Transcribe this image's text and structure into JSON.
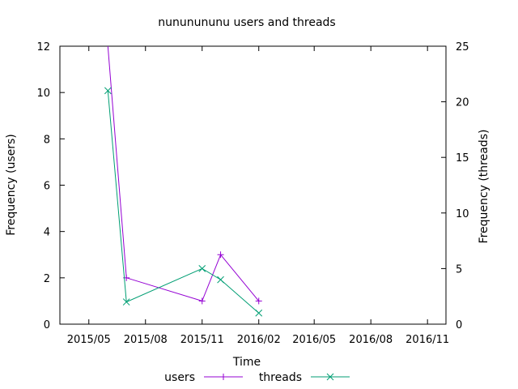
{
  "chart_data": {
    "type": "line",
    "title": "nununununu users and threads",
    "xlabel": "Time",
    "ylabel_left": "Frequency (users)",
    "ylabel_right": "Frequency (threads)",
    "x_ticks": [
      "2015/05",
      "2015/08",
      "2015/11",
      "2016/02",
      "2016/05",
      "2016/08",
      "2016/11"
    ],
    "y_left_ticks": [
      "0",
      "2",
      "4",
      "6",
      "8",
      "10",
      "12"
    ],
    "y_right_ticks": [
      "0",
      "5",
      "10",
      "15",
      "20",
      "25"
    ],
    "y_left_range": [
      0,
      12
    ],
    "y_right_range": [
      0,
      25
    ],
    "x_range": [
      "2015-03-15",
      "2016-12-01"
    ],
    "grid": false,
    "legend_position": "bottom",
    "series": [
      {
        "name": "users",
        "axis": "left",
        "color": "#9400d3",
        "marker": "plus",
        "points": [
          {
            "x": "2015-06-01",
            "y": 12.5
          },
          {
            "x": "2015-07-01",
            "y": 2
          },
          {
            "x": "2015-11-01",
            "y": 1
          },
          {
            "x": "2015-12-01",
            "y": 3
          },
          {
            "x": "2016-02-01",
            "y": 1
          }
        ]
      },
      {
        "name": "threads",
        "axis": "right",
        "color": "#009e73",
        "marker": "cross",
        "points": [
          {
            "x": "2015-06-01",
            "y": 21
          },
          {
            "x": "2015-07-01",
            "y": 2
          },
          {
            "x": "2015-11-01",
            "y": 5
          },
          {
            "x": "2015-12-01",
            "y": 4
          },
          {
            "x": "2016-02-01",
            "y": 1
          }
        ]
      }
    ]
  }
}
